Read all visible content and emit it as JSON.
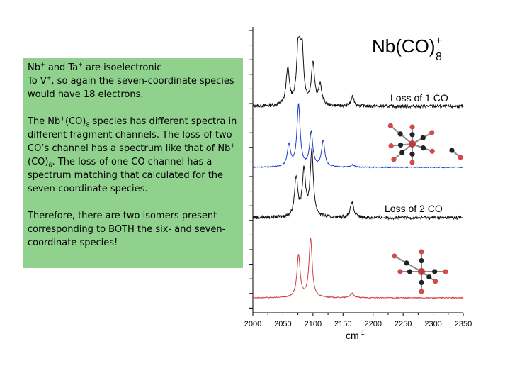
{
  "text": {
    "p1": {
      "a": "Nb",
      "b": "+",
      "c": " and Ta",
      "d": "+",
      "e": " are isoelectronic",
      "f": "To V",
      "g": "+",
      "h": ", so again the seven-coordinate species would have 18 electrons."
    },
    "p2": {
      "a": "The Nb",
      "b": "+",
      "c": "(CO)",
      "d": "8",
      "e": " species has different spectra in different fragment channels. The loss-of-two CO’s channel has a spectrum like that of Nb",
      "f": "+",
      "g": "(CO)",
      "h": "6",
      "i": ". The loss-of-one CO channel has a spectrum matching that calculated for the seven-coordinate species."
    },
    "p3": "Therefore, there are two isomers present corresponding to BOTH the six- and seven-coordinate species!"
  },
  "title": {
    "main": "Nb(CO)",
    "charge": "+",
    "sub": "8"
  },
  "chart_data": {
    "type": "line",
    "xlabel": "cm-1",
    "xlabel_main": "cm",
    "xlabel_sup": "-1",
    "xlim": [
      2000,
      2350
    ],
    "x_ticks": [
      2000,
      2050,
      2100,
      2150,
      2200,
      2250,
      2300,
      2350
    ],
    "channel_labels": [
      "Loss of 1  CO",
      "Loss of 2  CO"
    ],
    "series": [
      {
        "color": "#111111",
        "peaks": [
          [
            2058,
            0.55
          ],
          [
            2076,
            0.95
          ],
          [
            2081,
            1.0
          ],
          [
            2100,
            0.65
          ],
          [
            2112,
            0.3
          ],
          [
            2166,
            0.14
          ]
        ]
      },
      {
        "color": "#1a3ccc",
        "peaks": [
          [
            2060,
            0.35
          ],
          [
            2076,
            1.0
          ],
          [
            2097,
            0.55
          ],
          [
            2117,
            0.42
          ],
          [
            2166,
            0.04
          ]
        ]
      },
      {
        "color": "#111111",
        "peaks": [
          [
            2072,
            0.6
          ],
          [
            2085,
            0.7
          ],
          [
            2098,
            1.0
          ],
          [
            2165,
            0.24
          ]
        ]
      },
      {
        "color": "#d43a3a",
        "peaks": [
          [
            2076,
            0.72
          ],
          [
            2096,
            1.0
          ],
          [
            2165,
            0.08
          ]
        ]
      }
    ],
    "molecules": 2
  }
}
